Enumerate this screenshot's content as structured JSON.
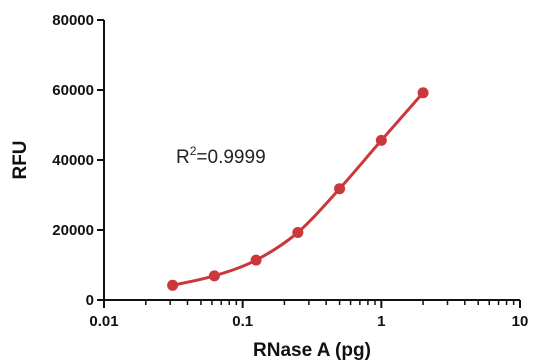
{
  "chart_data": {
    "type": "line",
    "xlabel": "RNase A (pg)",
    "ylabel": "RFU",
    "x_scale": "log",
    "xlim": [
      0.01,
      10
    ],
    "ylim": [
      0,
      80000
    ],
    "x_ticks": [
      "0.01",
      "0.1",
      "1",
      "10"
    ],
    "y_ticks": [
      "0",
      "20000",
      "40000",
      "60000",
      "80000"
    ],
    "grid": false,
    "annotation": {
      "prefix": "R",
      "superscript": "2",
      "value": "=0.9999"
    },
    "series": [
      {
        "color": "#c9383b",
        "x": [
          0.03125,
          0.0625,
          0.125,
          0.25,
          0.5,
          1,
          2
        ],
        "y": [
          4200,
          6900,
          11400,
          19300,
          31800,
          45600,
          59200
        ]
      }
    ]
  }
}
